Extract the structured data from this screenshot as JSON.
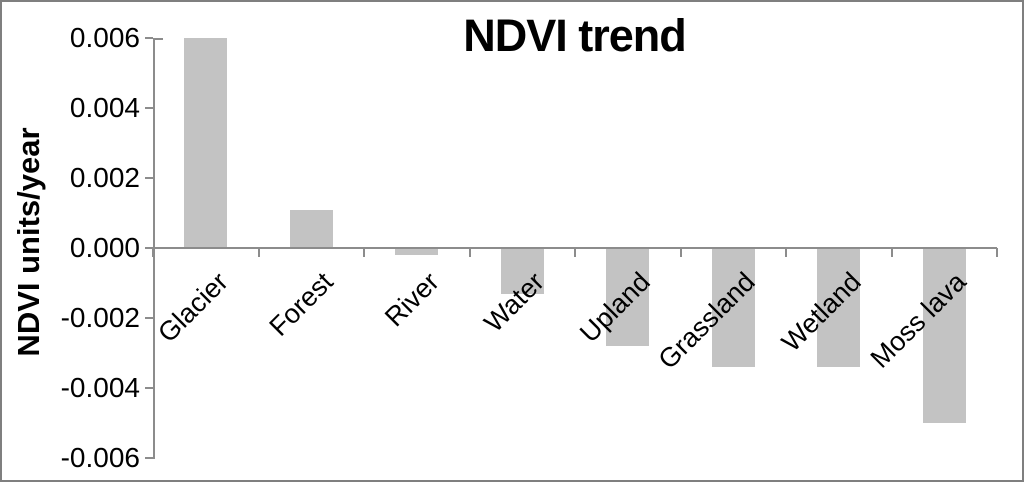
{
  "chart_data": {
    "type": "bar",
    "title": "NDVI trend",
    "xlabel": "",
    "ylabel": "NDVI units/year",
    "categories": [
      "Glacier",
      "Forest",
      "River",
      "Water",
      "Upland",
      "Grassland",
      "Wetland",
      "Moss lava"
    ],
    "values": [
      0.006,
      0.0011,
      -0.0002,
      -0.0013,
      -0.0028,
      -0.0034,
      -0.0034,
      -0.005
    ],
    "ylim": [
      -0.006,
      0.006
    ],
    "ytick_values": [
      0.006,
      0.004,
      0.002,
      0,
      -0.002,
      -0.004,
      -0.006
    ],
    "ytick_labels": [
      "0.006",
      "0.004",
      "0.002",
      "0.000",
      "-0.002",
      "-0.004",
      "-0.006"
    ],
    "grid": "off",
    "legend": "none",
    "bar_color": "#c3c3c3",
    "axis_color": "#8c8c8c",
    "text_color": "#000000",
    "background_color": "#ffffff",
    "category_label_rotation_deg": 45
  }
}
